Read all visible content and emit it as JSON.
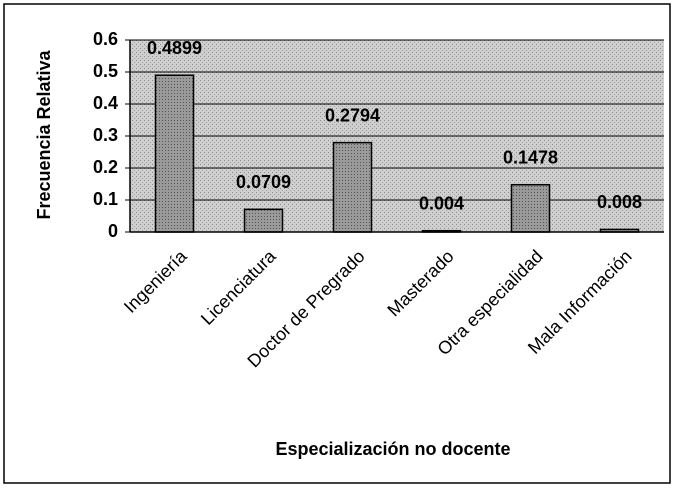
{
  "chart_data": {
    "type": "bar",
    "categories": [
      "Ingeniería",
      "Licenciatura",
      "Doctor de Pregrado",
      "Masterado",
      "Otra especialidad",
      "Mala Información"
    ],
    "values": [
      0.4899,
      0.0709,
      0.2794,
      0.004,
      0.1478,
      0.008
    ],
    "color": "#9a9a9a",
    "ylim": [
      0,
      0.6
    ],
    "yticks": [
      0,
      0.1,
      0.2,
      0.3,
      0.4,
      0.5,
      0.6
    ],
    "grid": true,
    "xlabel": "Especialización no docente",
    "ylabel": "Frecuencia Relativa"
  }
}
